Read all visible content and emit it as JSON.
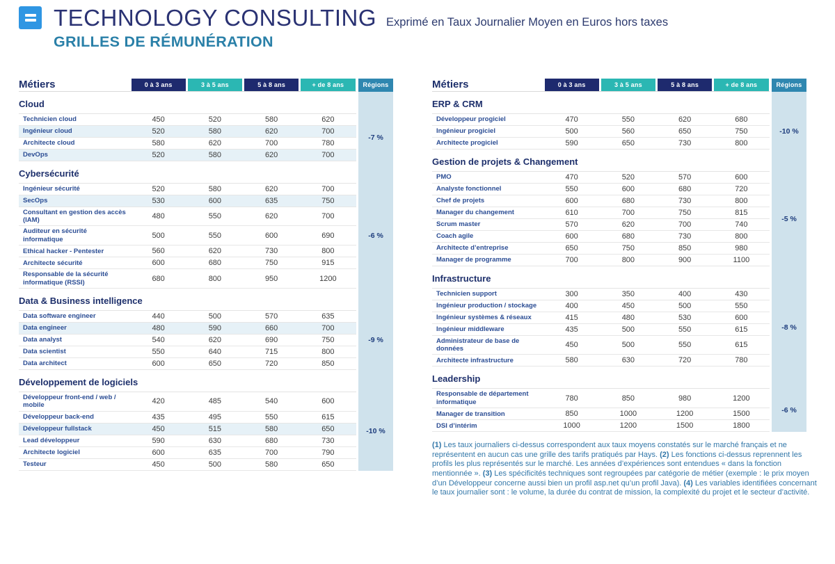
{
  "header": {
    "title": "TECHNOLOGY CONSULTING",
    "subtitle": "Exprimé en Taux Journalier Moyen en Euros hors taxes",
    "page_subtitle": "GRILLES DE RÉMUNÉRATION"
  },
  "columns": {
    "metiers": "Métiers",
    "experience": [
      "0 à 3 ans",
      "3 à 5 ans",
      "5 à 8 ans",
      "+ de 8 ans"
    ],
    "regions": "Régions"
  },
  "colors": {
    "navy_pill": "#1e2a6e",
    "teal_pill": "#2bb7b3",
    "regions_pill": "#2f87b0",
    "regions_band": "#cfe2ec",
    "shaded_row": "#e6f1f7",
    "logo_blue": "#2f96e3",
    "accent_teal": "#2a80a8"
  },
  "tables": [
    {
      "sections": [
        {
          "title": "Cloud",
          "region": "-7 %",
          "rows": [
            {
              "label": "Technicien cloud",
              "values": [
                450,
                520,
                580,
                620
              ],
              "shaded": false
            },
            {
              "label": "Ingénieur cloud",
              "values": [
                520,
                580,
                620,
                700
              ],
              "shaded": true
            },
            {
              "label": "Architecte cloud",
              "values": [
                580,
                620,
                700,
                780
              ],
              "shaded": false
            },
            {
              "label": "DevOps",
              "values": [
                520,
                580,
                620,
                700
              ],
              "shaded": true
            }
          ]
        },
        {
          "title": "Cybersécurité",
          "region": "-6 %",
          "rows": [
            {
              "label": "Ingénieur sécurité",
              "values": [
                520,
                580,
                620,
                700
              ],
              "shaded": false
            },
            {
              "label": "SecOps",
              "values": [
                530,
                600,
                635,
                750
              ],
              "shaded": true
            },
            {
              "label": "Consultant en gestion des accès (IAM)",
              "values": [
                480,
                550,
                620,
                700
              ],
              "shaded": false
            },
            {
              "label": "Auditeur en sécurité informatique",
              "values": [
                500,
                550,
                600,
                690
              ],
              "shaded": false
            },
            {
              "label": "Ethical hacker - Pentester",
              "values": [
                560,
                620,
                730,
                800
              ],
              "shaded": false
            },
            {
              "label": "Architecte sécurité",
              "values": [
                600,
                680,
                750,
                915
              ],
              "shaded": false
            },
            {
              "label": "Responsable de la sécurité informatique (RSSI)",
              "values": [
                680,
                800,
                950,
                1200
              ],
              "shaded": false
            }
          ]
        },
        {
          "title": "Data & Business intelligence",
          "region": "-9 %",
          "rows": [
            {
              "label": "Data software engineer",
              "values": [
                440,
                500,
                570,
                635
              ],
              "shaded": false
            },
            {
              "label": "Data engineer",
              "values": [
                480,
                590,
                660,
                700
              ],
              "shaded": true
            },
            {
              "label": "Data analyst",
              "values": [
                540,
                620,
                690,
                750
              ],
              "shaded": false
            },
            {
              "label": "Data scientist",
              "values": [
                550,
                640,
                715,
                800
              ],
              "shaded": false
            },
            {
              "label": "Data architect",
              "values": [
                600,
                650,
                720,
                850
              ],
              "shaded": false
            }
          ]
        },
        {
          "title": "Développement de logiciels",
          "region": "-10 %",
          "rows": [
            {
              "label": "Développeur front-end / web / mobile",
              "values": [
                420,
                485,
                540,
                600
              ],
              "shaded": false
            },
            {
              "label": "Développeur back-end",
              "values": [
                435,
                495,
                550,
                615
              ],
              "shaded": false
            },
            {
              "label": "Développeur fullstack",
              "values": [
                450,
                515,
                580,
                650
              ],
              "shaded": true
            },
            {
              "label": "Lead développeur",
              "values": [
                590,
                630,
                680,
                730
              ],
              "shaded": false
            },
            {
              "label": "Architecte logiciel",
              "values": [
                600,
                635,
                700,
                790
              ],
              "shaded": false
            },
            {
              "label": "Testeur",
              "values": [
                450,
                500,
                580,
                650
              ],
              "shaded": false
            }
          ]
        }
      ]
    },
    {
      "sections": [
        {
          "title": "ERP & CRM",
          "region": "-10 %",
          "rows": [
            {
              "label": "Développeur progiciel",
              "values": [
                470,
                550,
                620,
                680
              ],
              "shaded": false
            },
            {
              "label": "Ingénieur progiciel",
              "values": [
                500,
                560,
                650,
                750
              ],
              "shaded": false
            },
            {
              "label": "Architecte progiciel",
              "values": [
                590,
                650,
                730,
                800
              ],
              "shaded": false
            }
          ]
        },
        {
          "title": "Gestion de projets & Changement",
          "region": "-5 %",
          "rows": [
            {
              "label": "PMO",
              "values": [
                470,
                520,
                570,
                600
              ],
              "shaded": false
            },
            {
              "label": "Analyste fonctionnel",
              "values": [
                550,
                600,
                680,
                720
              ],
              "shaded": false
            },
            {
              "label": "Chef de projets",
              "values": [
                600,
                680,
                730,
                800
              ],
              "shaded": false
            },
            {
              "label": "Manager du changement",
              "values": [
                610,
                700,
                750,
                815
              ],
              "shaded": false
            },
            {
              "label": "Scrum master",
              "values": [
                570,
                620,
                700,
                740
              ],
              "shaded": false
            },
            {
              "label": "Coach agile",
              "values": [
                600,
                680,
                730,
                800
              ],
              "shaded": false
            },
            {
              "label": "Architecte d’entreprise",
              "values": [
                650,
                750,
                850,
                980
              ],
              "shaded": false
            },
            {
              "label": "Manager de programme",
              "values": [
                700,
                800,
                900,
                1100
              ],
              "shaded": false
            }
          ]
        },
        {
          "title": "Infrastructure",
          "region": "-8 %",
          "rows": [
            {
              "label": "Technicien support",
              "values": [
                300,
                350,
                400,
                430
              ],
              "shaded": false
            },
            {
              "label": "Ingénieur production / stockage",
              "values": [
                400,
                450,
                500,
                550
              ],
              "shaded": false
            },
            {
              "label": "Ingénieur systèmes & réseaux",
              "values": [
                415,
                480,
                530,
                600
              ],
              "shaded": false
            },
            {
              "label": "Ingénieur middleware",
              "values": [
                435,
                500,
                550,
                615
              ],
              "shaded": false
            },
            {
              "label": "Administrateur de base de données",
              "values": [
                450,
                500,
                550,
                615
              ],
              "shaded": false
            },
            {
              "label": "Architecte infrastructure",
              "values": [
                580,
                630,
                720,
                780
              ],
              "shaded": false
            }
          ]
        },
        {
          "title": "Leadership",
          "region": "-6 %",
          "rows": [
            {
              "label": "Responsable de département informatique",
              "values": [
                780,
                850,
                980,
                1200
              ],
              "shaded": false
            },
            {
              "label": "Manager de transition",
              "values": [
                850,
                1000,
                1200,
                1500
              ],
              "shaded": false
            },
            {
              "label": "DSI d’intérim",
              "values": [
                1000,
                1200,
                1500,
                1800
              ],
              "shaded": false
            }
          ]
        }
      ]
    }
  ],
  "footnotes": [
    {
      "num": "(1)",
      "text": " Les taux journaliers ci-dessus correspondent aux taux moyens constatés sur le marché français et ne représentent en aucun cas une grille des tarifs pratiqués par Hays. "
    },
    {
      "num": "(2)",
      "text": " Les fonctions ci-dessus reprennent les profils les plus représentés sur le marché. Les années d’expériences sont entendues « dans la fonction mentionnée ». "
    },
    {
      "num": "(3)",
      "text": " Les spécificités techniques sont regroupées par catégorie de métier (exemple : le prix moyen d’un Développeur concerne aussi bien un profil asp.net qu’un profil Java). "
    },
    {
      "num": "(4)",
      "text": " Les variables identifiées concernant le taux journalier sont : le volume, la durée du contrat de mission, la complexité du projet et le secteur d’activité."
    }
  ]
}
